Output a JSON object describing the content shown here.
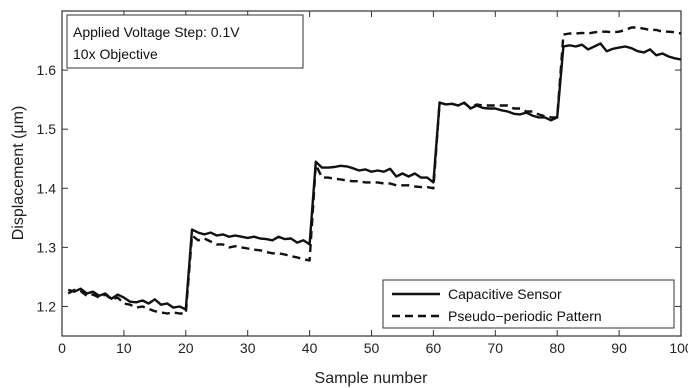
{
  "chart_data": {
    "type": "line",
    "xlabel": "Sample number",
    "ylabel": "Displacement (μm)",
    "xlim": [
      0,
      100
    ],
    "ylim": [
      1.15,
      1.7
    ],
    "xticks": [
      0,
      10,
      20,
      30,
      40,
      50,
      60,
      70,
      80,
      90,
      100
    ],
    "yticks": [
      1.2,
      1.3,
      1.4,
      1.5,
      1.6
    ],
    "ytick_labels": [
      "1.2",
      "1.3",
      "1.4",
      "1.5",
      "1.6"
    ],
    "grid": false,
    "legend_position": "bottom-right",
    "annotation_lines": [
      "Applied Voltage Step: 0.1V",
      "10x Objective"
    ],
    "series": [
      {
        "name": "Capacitive Sensor",
        "style": "solid",
        "color": "#111111",
        "x": [
          1,
          2,
          3,
          4,
          5,
          6,
          7,
          8,
          9,
          10,
          11,
          12,
          13,
          14,
          15,
          16,
          17,
          18,
          19,
          20,
          21,
          22,
          23,
          24,
          25,
          26,
          27,
          28,
          29,
          30,
          31,
          32,
          33,
          34,
          35,
          36,
          37,
          38,
          39,
          40,
          41,
          42,
          43,
          44,
          45,
          46,
          47,
          48,
          49,
          50,
          51,
          52,
          53,
          54,
          55,
          56,
          57,
          58,
          59,
          60,
          61,
          62,
          63,
          64,
          65,
          66,
          67,
          68,
          69,
          70,
          71,
          72,
          73,
          74,
          75,
          76,
          77,
          78,
          79,
          80,
          81,
          82,
          83,
          84,
          85,
          86,
          87,
          88,
          89,
          90,
          91,
          92,
          93,
          94,
          95,
          96,
          97,
          98,
          99,
          100
        ],
        "y": [
          1.228,
          1.225,
          1.23,
          1.222,
          1.225,
          1.218,
          1.222,
          1.213,
          1.22,
          1.215,
          1.208,
          1.207,
          1.21,
          1.205,
          1.212,
          1.203,
          1.205,
          1.198,
          1.2,
          1.195,
          1.33,
          1.325,
          1.322,
          1.325,
          1.32,
          1.322,
          1.318,
          1.32,
          1.318,
          1.316,
          1.318,
          1.315,
          1.314,
          1.312,
          1.318,
          1.314,
          1.315,
          1.308,
          1.312,
          1.305,
          1.445,
          1.435,
          1.435,
          1.436,
          1.438,
          1.437,
          1.434,
          1.43,
          1.432,
          1.428,
          1.43,
          1.428,
          1.433,
          1.42,
          1.425,
          1.42,
          1.425,
          1.418,
          1.418,
          1.41,
          1.545,
          1.542,
          1.543,
          1.54,
          1.545,
          1.535,
          1.54,
          1.536,
          1.535,
          1.535,
          1.532,
          1.53,
          1.526,
          1.525,
          1.528,
          1.523,
          1.52,
          1.52,
          1.515,
          1.52,
          1.64,
          1.642,
          1.64,
          1.643,
          1.635,
          1.64,
          1.645,
          1.632,
          1.636,
          1.638,
          1.64,
          1.637,
          1.632,
          1.63,
          1.635,
          1.625,
          1.628,
          1.623,
          1.62,
          1.618
        ]
      },
      {
        "name": "Pseudo−periodic Pattern",
        "style": "dashed",
        "color": "#111111",
        "x": [
          1,
          2,
          3,
          4,
          5,
          6,
          7,
          8,
          9,
          10,
          11,
          12,
          13,
          14,
          15,
          16,
          17,
          18,
          19,
          20,
          21,
          22,
          23,
          24,
          25,
          26,
          27,
          28,
          29,
          30,
          31,
          32,
          33,
          34,
          35,
          36,
          37,
          38,
          39,
          40,
          41,
          42,
          43,
          44,
          45,
          46,
          47,
          48,
          49,
          50,
          51,
          52,
          53,
          54,
          55,
          56,
          57,
          58,
          59,
          60,
          61,
          62,
          63,
          64,
          65,
          66,
          67,
          68,
          69,
          70,
          71,
          72,
          73,
          74,
          75,
          76,
          77,
          78,
          79,
          80,
          81,
          82,
          83,
          84,
          85,
          86,
          87,
          88,
          89,
          90,
          91,
          92,
          93,
          94,
          95,
          96,
          97,
          98,
          99,
          100
        ],
        "y": [
          1.222,
          1.228,
          1.226,
          1.218,
          1.22,
          1.215,
          1.22,
          1.212,
          1.215,
          1.205,
          1.203,
          1.198,
          1.2,
          1.196,
          1.192,
          1.19,
          1.188,
          1.19,
          1.188,
          1.188,
          1.32,
          1.312,
          1.315,
          1.31,
          1.305,
          1.305,
          1.3,
          1.302,
          1.3,
          1.298,
          1.296,
          1.295,
          1.292,
          1.29,
          1.29,
          1.288,
          1.285,
          1.283,
          1.28,
          1.278,
          1.44,
          1.418,
          1.418,
          1.416,
          1.415,
          1.413,
          1.412,
          1.412,
          1.41,
          1.41,
          1.41,
          1.408,
          1.408,
          1.405,
          1.405,
          1.405,
          1.403,
          1.402,
          1.402,
          1.4,
          1.545,
          1.542,
          1.543,
          1.54,
          1.544,
          1.536,
          1.542,
          1.54,
          1.54,
          1.54,
          1.54,
          1.54,
          1.535,
          1.535,
          1.53,
          1.53,
          1.525,
          1.522,
          1.52,
          1.52,
          1.66,
          1.662,
          1.662,
          1.663,
          1.662,
          1.664,
          1.665,
          1.665,
          1.664,
          1.665,
          1.668,
          1.672,
          1.672,
          1.67,
          1.668,
          1.668,
          1.665,
          1.665,
          1.664,
          1.662
        ]
      }
    ]
  }
}
